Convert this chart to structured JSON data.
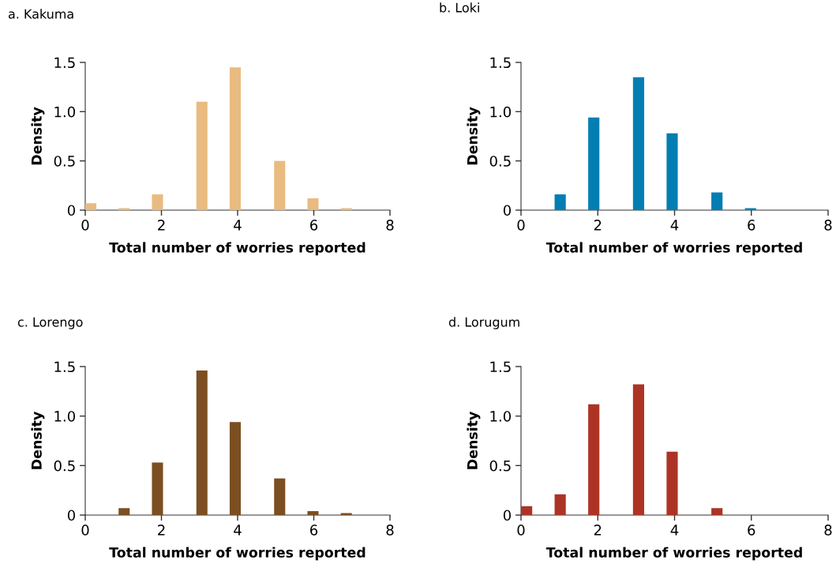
{
  "chart_data": [
    {
      "type": "histogram",
      "title": "a. Kakuma",
      "xlabel": "Total number of worries reported",
      "ylabel": "Density",
      "color": "#e9bb80",
      "bins": [
        0,
        0.2917,
        0.5833,
        0.875,
        1.1667,
        1.4583,
        1.75,
        2.0417,
        2.3333,
        2.625,
        2.9167,
        3.2083,
        3.5,
        3.7917,
        4.0833,
        4.375,
        4.6667,
        4.9583,
        5.25,
        5.5417,
        5.8333,
        6.125,
        6.4167,
        6.7083,
        7
      ],
      "values": [
        0.07,
        0,
        0,
        0.02,
        0,
        0,
        0.16,
        0,
        0,
        0,
        1.1,
        0,
        0,
        1.45,
        0,
        0,
        0,
        0.5,
        0,
        0,
        0.12,
        0,
        0,
        0.02
      ],
      "xlim": [
        0,
        8
      ],
      "xticks": [
        0,
        2,
        4,
        6,
        8
      ],
      "ylim": [
        0,
        1.5
      ],
      "yticks": [
        0,
        {
          "value": 0.5,
          "label": "0.5"
        },
        {
          "value": 1.0,
          "label": "1.0"
        },
        {
          "value": 1.5,
          "label": "1.5"
        }
      ],
      "grid": false,
      "legend": false
    },
    {
      "type": "histogram",
      "title": "b. Loki",
      "xlabel": "Total number of worries reported",
      "ylabel": "Density",
      "color": "#027eb3",
      "bins": [
        0,
        0.2917,
        0.5833,
        0.875,
        1.1667,
        1.4583,
        1.75,
        2.0417,
        2.3333,
        2.625,
        2.9167,
        3.2083,
        3.5,
        3.7917,
        4.0833,
        4.375,
        4.6667,
        4.9583,
        5.25,
        5.5417,
        5.8333,
        6.125,
        6.4167,
        6.7083,
        7
      ],
      "values": [
        0,
        0,
        0,
        0.16,
        0,
        0,
        0.94,
        0,
        0,
        0,
        1.35,
        0,
        0,
        0.78,
        0,
        0,
        0,
        0.18,
        0,
        0,
        0.02,
        0,
        0,
        0
      ],
      "xlim": [
        0,
        8
      ],
      "xticks": [
        0,
        2,
        4,
        6,
        8
      ],
      "ylim": [
        0,
        1.5
      ],
      "yticks": [
        0,
        {
          "value": 0.5,
          "label": "0.5"
        },
        {
          "value": 1.0,
          "label": "1.0"
        },
        {
          "value": 1.5,
          "label": "1.5"
        }
      ],
      "grid": false,
      "legend": false
    },
    {
      "type": "histogram",
      "title": "c. Lorengo",
      "xlabel": "Total number of worries reported",
      "ylabel": "Density",
      "color": "#7b4f22",
      "bins": [
        0,
        0.2917,
        0.5833,
        0.875,
        1.1667,
        1.4583,
        1.75,
        2.0417,
        2.3333,
        2.625,
        2.9167,
        3.2083,
        3.5,
        3.7917,
        4.0833,
        4.375,
        4.6667,
        4.9583,
        5.25,
        5.5417,
        5.8333,
        6.125,
        6.4167,
        6.7083,
        7
      ],
      "values": [
        0,
        0,
        0,
        0.07,
        0,
        0,
        0.53,
        0,
        0,
        0,
        1.46,
        0,
        0,
        0.94,
        0,
        0,
        0,
        0.37,
        0,
        0,
        0.04,
        0,
        0,
        0.02
      ],
      "xlim": [
        0,
        8
      ],
      "xticks": [
        0,
        2,
        4,
        6,
        8
      ],
      "ylim": [
        0,
        1.5
      ],
      "yticks": [
        0,
        {
          "value": 0.5,
          "label": "0.5"
        },
        {
          "value": 1.0,
          "label": "1.0"
        },
        {
          "value": 1.5,
          "label": "1.5"
        }
      ],
      "grid": false,
      "legend": false
    },
    {
      "type": "histogram",
      "title": "d. Lorugum",
      "xlabel": "Total number of worries reported",
      "ylabel": "Density",
      "color": "#ad3424",
      "bins": [
        0,
        0.2917,
        0.5833,
        0.875,
        1.1667,
        1.4583,
        1.75,
        2.0417,
        2.3333,
        2.625,
        2.9167,
        3.2083,
        3.5,
        3.7917,
        4.0833,
        4.375,
        4.6667,
        4.9583,
        5.25,
        5.5417,
        5.8333,
        6.125,
        6.4167,
        6.7083,
        7
      ],
      "values": [
        0.09,
        0,
        0,
        0.21,
        0,
        0,
        1.12,
        0,
        0,
        0,
        1.32,
        0,
        0,
        0.64,
        0,
        0,
        0,
        0.07,
        0,
        0,
        0,
        0,
        0,
        0
      ],
      "xlim": [
        0,
        8
      ],
      "xticks": [
        0,
        2,
        4,
        6,
        8
      ],
      "ylim": [
        0,
        1.5
      ],
      "yticks": [
        0,
        {
          "value": 0.5,
          "label": "0.5"
        },
        {
          "value": 1.0,
          "label": "1.0"
        },
        {
          "value": 1.5,
          "label": "1.5"
        }
      ],
      "grid": false,
      "legend": false
    }
  ]
}
